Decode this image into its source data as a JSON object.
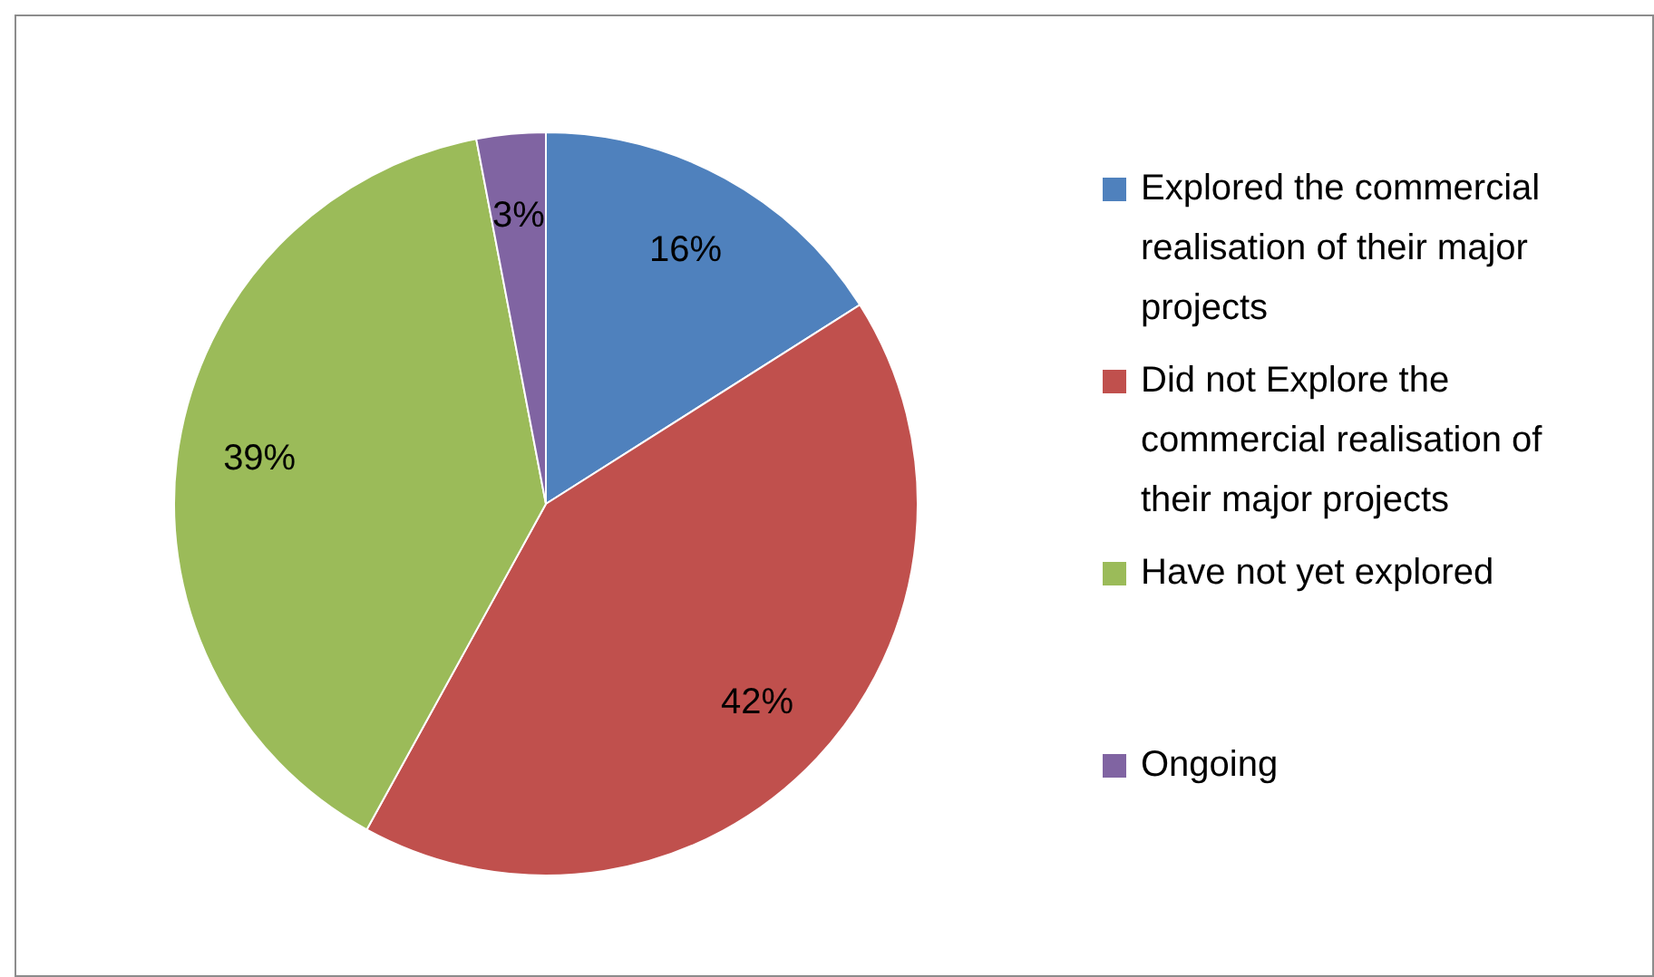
{
  "chart_data": {
    "type": "pie",
    "categories": [
      "Explored the commercial realisation of their major projects",
      "Did not Explore the commercial realisation of their major projects",
      "Have not yet explored",
      "Ongoing"
    ],
    "values": [
      16,
      42,
      39,
      3
    ],
    "colors": [
      "#4f81bd",
      "#c0504d",
      "#9bbb59",
      "#8064a2"
    ],
    "value_labels": [
      "16%",
      "42%",
      "39%",
      "3%"
    ],
    "legend": "right"
  }
}
